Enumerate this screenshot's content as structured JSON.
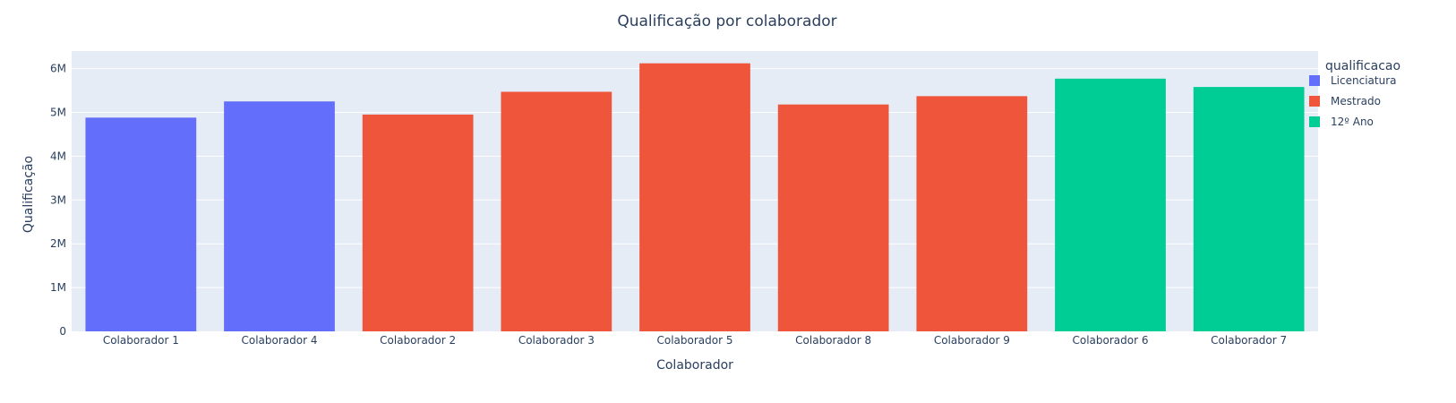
{
  "chart_data": {
    "type": "bar",
    "title": "Qualificação por colaborador",
    "xlabel": "Colaborador",
    "ylabel": "Qualificação",
    "ylim": [
      0,
      6400000
    ],
    "y_ticks": [
      {
        "value": 0,
        "label": "0"
      },
      {
        "value": 1000000,
        "label": "1M"
      },
      {
        "value": 2000000,
        "label": "2M"
      },
      {
        "value": 3000000,
        "label": "3M"
      },
      {
        "value": 4000000,
        "label": "4M"
      },
      {
        "value": 5000000,
        "label": "5M"
      },
      {
        "value": 6000000,
        "label": "6M"
      }
    ],
    "grid": true,
    "legend": {
      "title": "qualificacao",
      "placement": "right"
    },
    "series": [
      {
        "name": "Licenciatura",
        "color": "#636efa",
        "categories": [
          "Colaborador 1",
          "Colaborador 4"
        ],
        "values": [
          4880000,
          5250000
        ]
      },
      {
        "name": "Mestrado",
        "color": "#ef553b",
        "categories": [
          "Colaborador 2",
          "Colaborador 3",
          "Colaborador 5",
          "Colaborador 8",
          "Colaborador 9"
        ],
        "values": [
          4950000,
          5470000,
          6120000,
          5180000,
          5370000
        ]
      },
      {
        "name": "12º Ano",
        "color": "#00cc96",
        "categories": [
          "Colaborador 6",
          "Colaborador 7"
        ],
        "values": [
          5770000,
          5580000
        ]
      }
    ]
  },
  "colors": {
    "plot_bg": "#e5ecf6",
    "grid": "#ffffff",
    "text": "#2a3f5f"
  }
}
